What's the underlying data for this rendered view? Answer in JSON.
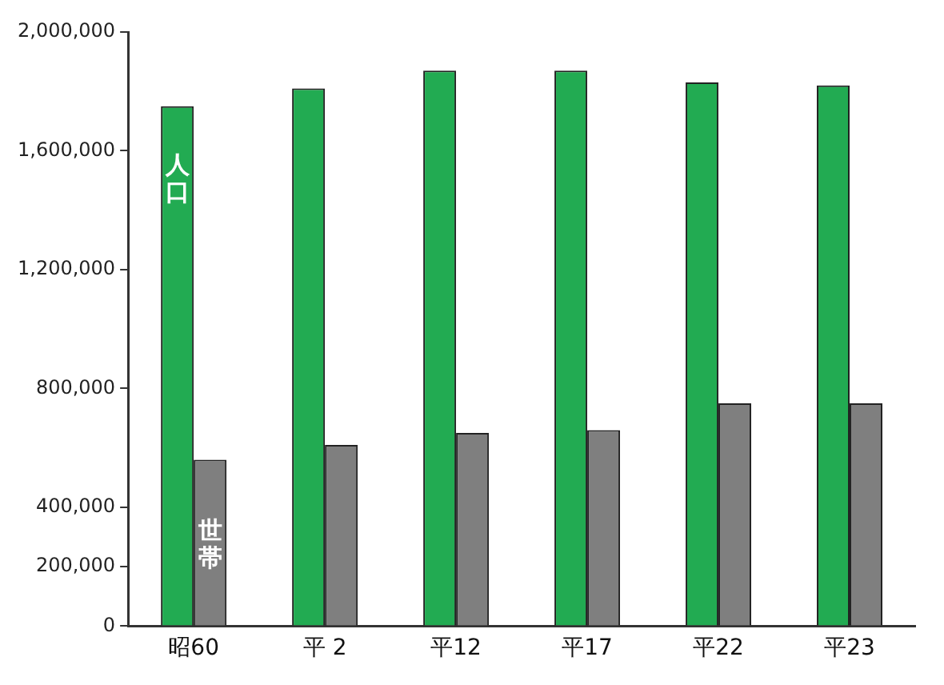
{
  "chart_data": {
    "type": "bar",
    "categories": [
      "昭60",
      "平 2",
      "平12",
      "平17",
      "平22",
      "平23"
    ],
    "series": [
      {
        "name": "人口",
        "color": "#22ab52",
        "values": [
          1750000,
          1810000,
          1870000,
          1870000,
          1830000,
          1820000
        ]
      },
      {
        "name": "世帯",
        "color": "#7f7f7f",
        "values": [
          560000,
          610000,
          650000,
          660000,
          750000,
          750000
        ]
      }
    ],
    "ylim": [
      0,
      2000000
    ],
    "yticks": [
      0,
      {
        "value": 200000,
        "label": "200,000"
      },
      {
        "value": 400000,
        "label": "400,000"
      },
      {
        "value": 800000,
        "label": "800,000"
      },
      {
        "value": 1200000,
        "label": "1,200,000"
      },
      {
        "value": 1600000,
        "label": "1,600,000"
      },
      {
        "value": 2000000,
        "label": "2,000,000"
      }
    ],
    "grid": false,
    "legend": false
  }
}
